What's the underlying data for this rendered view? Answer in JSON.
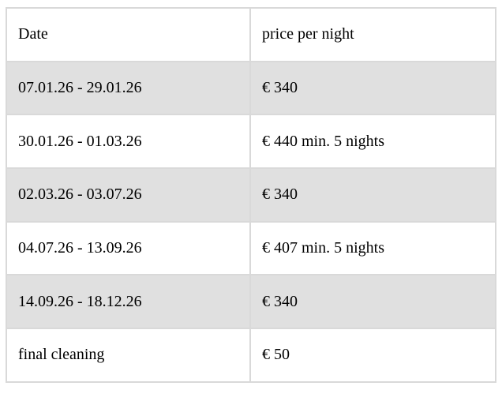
{
  "table": {
    "columns": [
      {
        "label": "Date"
      },
      {
        "label": "price per night"
      }
    ],
    "rows": [
      {
        "date": "07.01.26 - 29.01.26",
        "price": "€ 340"
      },
      {
        "date": "30.01.26 - 01.03.26",
        "price": "€ 440 min. 5 nights"
      },
      {
        "date": "02.03.26 - 03.07.26",
        "price": "€ 340"
      },
      {
        "date": "04.07.26 - 13.09.26",
        "price": "€ 407 min. 5 nights"
      },
      {
        "date": "14.09.26 - 18.12.26",
        "price": "€ 340"
      },
      {
        "date": "final cleaning",
        "price": "€ 50"
      }
    ],
    "colors": {
      "shaded_row_background": "#e0e0e0",
      "plain_row_background": "#ffffff",
      "border": "#d9d9d9",
      "text": "#000000",
      "page_background": "#ffffff"
    }
  }
}
